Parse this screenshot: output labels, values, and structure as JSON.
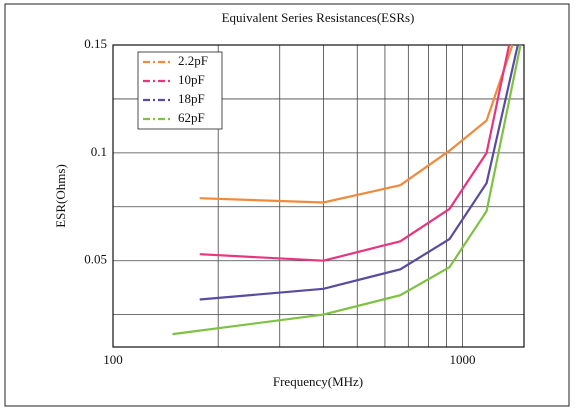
{
  "chart_data": {
    "type": "line",
    "title": "Equivalent Series Resistances(ESRs)",
    "x_label": "Frequency(MHz)",
    "y_label": "ESR(Ohms)",
    "x_scale": "log",
    "xlim": [
      100,
      1500
    ],
    "xticks": [
      100,
      1000
    ],
    "x_minor_ticks": [
      200,
      300,
      400,
      500,
      600,
      700,
      800,
      900
    ],
    "ylim": [
      0.01,
      0.15
    ],
    "yticks": [
      0.05,
      0.1,
      0.15
    ],
    "y_minor_ticks": [
      0.025,
      0.075,
      0.125
    ],
    "grid": true,
    "legend": "upper left",
    "series": [
      {
        "name": "2.2pF",
        "color": "#f08a3c",
        "x": [
          177,
          400,
          664,
          918,
          1172,
          1390
        ],
        "values": [
          0.079,
          0.077,
          0.085,
          0.101,
          0.115,
          0.15
        ]
      },
      {
        "name": "10pF",
        "color": "#e8357f",
        "x": [
          177,
          400,
          664,
          918,
          1172,
          1360
        ],
        "values": [
          0.053,
          0.05,
          0.059,
          0.074,
          0.1,
          0.15
        ]
      },
      {
        "name": "18pF",
        "color": "#5a4aa0",
        "x": [
          177,
          400,
          664,
          918,
          1172,
          1440
        ],
        "values": [
          0.032,
          0.037,
          0.046,
          0.06,
          0.086,
          0.15
        ]
      },
      {
        "name": "62pF",
        "color": "#7dc242",
        "x": [
          148,
          400,
          664,
          918,
          1172,
          1466
        ],
        "values": [
          0.016,
          0.025,
          0.034,
          0.047,
          0.073,
          0.15
        ]
      }
    ]
  }
}
